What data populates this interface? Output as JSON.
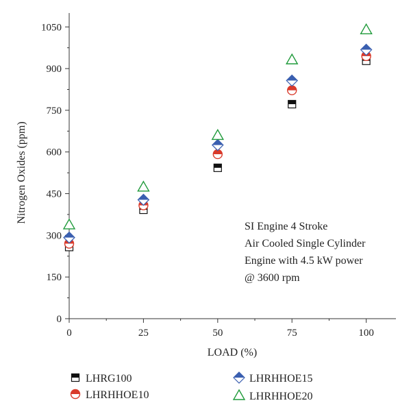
{
  "chart_data": {
    "type": "scatter",
    "xlabel": "LOAD (%)",
    "ylabel": "Nitrogen Oxides (ppm)",
    "xlim": [
      0,
      110
    ],
    "ylim": [
      0,
      1100
    ],
    "xticks": [
      0,
      25,
      50,
      75,
      100
    ],
    "yticks": [
      0,
      150,
      300,
      450,
      600,
      750,
      900,
      1050
    ],
    "x": [
      0,
      25,
      50,
      75,
      100
    ],
    "series": [
      {
        "name": "LHRG100",
        "marker": "square-half",
        "color": "#111111",
        "values": [
          258,
          392,
          543,
          772,
          928
        ]
      },
      {
        "name": "LHRHHOE10",
        "marker": "circle-half",
        "color": "#d93a2b",
        "values": [
          270,
          408,
          592,
          822,
          945
        ]
      },
      {
        "name": "LHRHHOE15",
        "marker": "diamond-half",
        "color": "#3a5fb0",
        "values": [
          292,
          428,
          625,
          857,
          968
        ]
      },
      {
        "name": "LHRHHOE20",
        "marker": "triangle",
        "color": "#1f9a3a",
        "values": [
          338,
          474,
          660,
          932,
          1040
        ]
      }
    ],
    "annotation": [
      "SI Engine 4 Stroke",
      "Air Cooled Single Cylinder",
      "Engine with 4.5 kW power",
      "@ 3600 rpm"
    ],
    "legend_position": "bottom",
    "grid": false
  }
}
